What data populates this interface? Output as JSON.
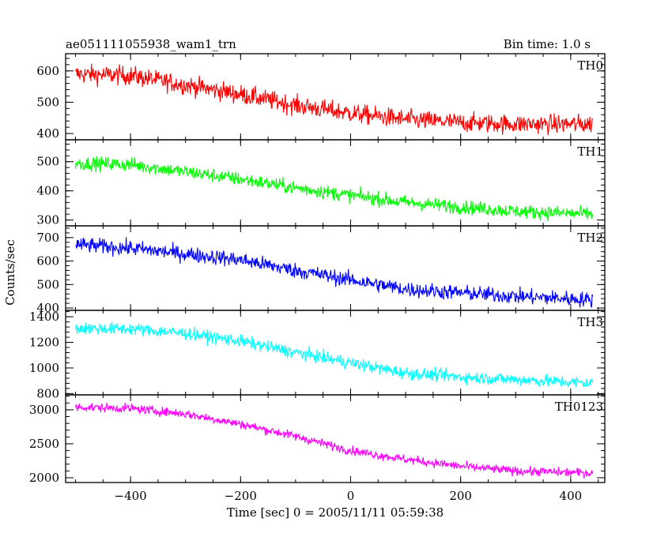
{
  "header": {
    "left_title": "ae051111055938_wam1_trn",
    "right_title": "Bin time: 1.0 s"
  },
  "chart_data": {
    "type": "line",
    "xlabel": "Time [sec] 0 = 2005/11/11 05:59:38",
    "ylabel": "Counts/sec",
    "xlim": [
      -518,
      462
    ],
    "x_ticks": [
      -400,
      -200,
      0,
      200,
      400
    ],
    "x_tick_labels": [
      "−400",
      "−200",
      "0",
      "200",
      "400"
    ],
    "x_range_data": [
      -500,
      440
    ],
    "panels": [
      {
        "name": "TH0",
        "color": "#ff0000",
        "ylim": [
          380,
          655
        ],
        "ticks": [
          400,
          500,
          600
        ],
        "trend": [
          [
            -500,
            590
          ],
          [
            -400,
            585
          ],
          [
            -300,
            555
          ],
          [
            -200,
            525
          ],
          [
            -100,
            490
          ],
          [
            0,
            465
          ],
          [
            100,
            445
          ],
          [
            200,
            435
          ],
          [
            300,
            430
          ],
          [
            440,
            430
          ]
        ],
        "noise": 28
      },
      {
        "name": "TH1",
        "color": "#00ff00",
        "ylim": [
          280,
          575
        ],
        "ticks": [
          300,
          400,
          500
        ],
        "trend": [
          [
            -500,
            495
          ],
          [
            -400,
            490
          ],
          [
            -300,
            465
          ],
          [
            -200,
            440
          ],
          [
            -100,
            410
          ],
          [
            0,
            385
          ],
          [
            100,
            360
          ],
          [
            200,
            345
          ],
          [
            300,
            330
          ],
          [
            440,
            320
          ]
        ],
        "noise": 22
      },
      {
        "name": "TH2",
        "color": "#0000ff",
        "ylim": [
          390,
          750
        ],
        "ticks": [
          400,
          500,
          600,
          700
        ],
        "trend": [
          [
            -500,
            670
          ],
          [
            -400,
            655
          ],
          [
            -300,
            630
          ],
          [
            -200,
            605
          ],
          [
            -100,
            560
          ],
          [
            0,
            520
          ],
          [
            100,
            480
          ],
          [
            200,
            465
          ],
          [
            300,
            450
          ],
          [
            440,
            435
          ]
        ],
        "noise": 30
      },
      {
        "name": "TH3",
        "color": "#00ffff",
        "ylim": [
          790,
          1450
        ],
        "ticks": [
          800,
          1000,
          1200,
          1400
        ],
        "trend": [
          [
            -500,
            1310
          ],
          [
            -400,
            1305
          ],
          [
            -300,
            1270
          ],
          [
            -200,
            1210
          ],
          [
            -100,
            1120
          ],
          [
            0,
            1040
          ],
          [
            100,
            960
          ],
          [
            200,
            930
          ],
          [
            300,
            910
          ],
          [
            440,
            880
          ]
        ],
        "noise": 45
      },
      {
        "name": "TH0123",
        "color": "#ff00ff",
        "ylim": [
          1930,
          3220
        ],
        "ticks": [
          2000,
          2500,
          3000
        ],
        "trend": [
          [
            -500,
            3040
          ],
          [
            -400,
            3020
          ],
          [
            -300,
            2940
          ],
          [
            -200,
            2790
          ],
          [
            -100,
            2610
          ],
          [
            0,
            2400
          ],
          [
            100,
            2270
          ],
          [
            200,
            2170
          ],
          [
            300,
            2100
          ],
          [
            440,
            2070
          ]
        ],
        "noise": 60
      }
    ]
  }
}
